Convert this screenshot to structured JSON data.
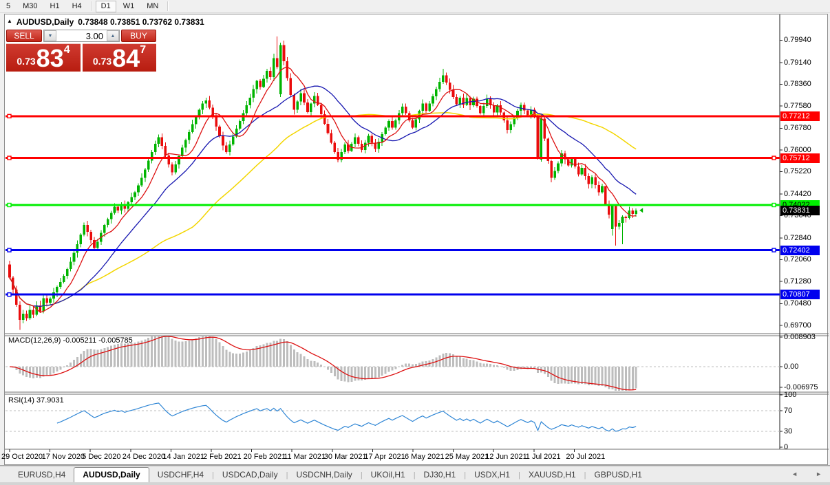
{
  "toolbar": {
    "timeframes": [
      "5",
      "M30",
      "H1",
      "H4",
      "D1",
      "W1",
      "MN"
    ],
    "active": "D1",
    "separators_before": [
      "D1"
    ]
  },
  "window": {
    "title_symbol": "AUDUSD,Daily",
    "title_ohlc": "0.73848 0.73851 0.73762 0.73831"
  },
  "trade_panel": {
    "sell_label": "SELL",
    "buy_label": "BUY",
    "volume": "3.00",
    "sell_price": {
      "prefix": "0.73",
      "big": "83",
      "sup": "4"
    },
    "buy_price": {
      "prefix": "0.73",
      "big": "84",
      "sup": "7"
    }
  },
  "macd_panel": {
    "label": "MACD(12,26,9) -0.005211 -0.005785"
  },
  "rsi_panel": {
    "label": "RSI(14) 37.9031"
  },
  "tabs": {
    "items": [
      "EURUSD,H4",
      "AUDUSD,Daily",
      "USDCHF,H4",
      "USDCAD,Daily",
      "USDCNH,Daily",
      "UKOil,H1",
      "DJ30,H1",
      "USDX,H1",
      "XAUUSD,H1",
      "GBPUSD,H1"
    ],
    "active": "AUDUSD,Daily",
    "left_arrow": "◄",
    "right_arrow": "►"
  },
  "chart_data": {
    "type": "candlestick",
    "symbol": "AUDUSD",
    "timeframe": "Daily",
    "colors": {
      "up": "#00b400",
      "down": "#ea0c0c",
      "macd_bar": "#bdbdbd",
      "macd_signal": "#dd1111",
      "rsi_line": "#2f86d5",
      "level_dash": "#bcbcbc"
    },
    "closes": [
      0.7142,
      0.7098,
      0.7044,
      0.699,
      0.7012,
      0.6996,
      0.7026,
      0.7008,
      0.7042,
      0.702,
      0.7068,
      0.7052,
      0.7066,
      0.7088,
      0.7108,
      0.7126,
      0.7148,
      0.7172,
      0.7198,
      0.723,
      0.7262,
      0.7296,
      0.733,
      0.7306,
      0.7276,
      0.7248,
      0.727,
      0.7302,
      0.733,
      0.7352,
      0.7374,
      0.7396,
      0.7382,
      0.7404,
      0.7388,
      0.7412,
      0.743,
      0.7448,
      0.7472,
      0.75,
      0.753,
      0.7562,
      0.7592,
      0.7622,
      0.7645,
      0.7615,
      0.758,
      0.7548,
      0.752,
      0.7548,
      0.7578,
      0.7608,
      0.7636,
      0.7664,
      0.7692,
      0.7718,
      0.7744,
      0.7766,
      0.7778,
      0.7752,
      0.7718,
      0.7684,
      0.765,
      0.7616,
      0.7592,
      0.762,
      0.7648,
      0.7676,
      0.7704,
      0.7732,
      0.776,
      0.7788,
      0.7818,
      0.7848,
      0.7826,
      0.7856,
      0.7884,
      0.7862,
      0.793,
      0.7898,
      0.7976,
      0.7918,
      0.7858,
      0.7798,
      0.7744,
      0.7774,
      0.7804,
      0.777,
      0.7736,
      0.7766,
      0.7794,
      0.7762,
      0.7728,
      0.7694,
      0.766,
      0.7626,
      0.7592,
      0.7564,
      0.7592,
      0.762,
      0.7596,
      0.7622,
      0.7646,
      0.7622,
      0.76,
      0.7626,
      0.765,
      0.7626,
      0.7604,
      0.763,
      0.7656,
      0.768,
      0.7704,
      0.768,
      0.7706,
      0.7732,
      0.7756,
      0.7732,
      0.7706,
      0.768,
      0.771,
      0.774,
      0.7766,
      0.774,
      0.7766,
      0.7792,
      0.7818,
      0.7844,
      0.7868,
      0.7842,
      0.7816,
      0.779,
      0.7764,
      0.7788,
      0.7762,
      0.7786,
      0.776,
      0.7784,
      0.7758,
      0.7732,
      0.7758,
      0.7784,
      0.776,
      0.7734,
      0.776,
      0.7734,
      0.7706,
      0.7672,
      0.7692,
      0.7716,
      0.774,
      0.7762,
      0.7742,
      0.7722,
      0.7744,
      0.7722,
      0.757,
      0.7712,
      0.764,
      0.756,
      0.75,
      0.7524,
      0.7552,
      0.7588,
      0.7566,
      0.7544,
      0.757,
      0.754,
      0.7512,
      0.7536,
      0.7506,
      0.7478,
      0.7502,
      0.7474,
      0.7448,
      0.747,
      0.7402,
      0.7368,
      0.7398,
      0.7325,
      0.7338,
      0.736,
      0.7355,
      0.7383,
      0.737,
      0.7383
    ],
    "first_open": 0.7188,
    "overrides": {
      "3": {
        "l": 0.6954
      },
      "79": {
        "o": 0.793,
        "h": 0.8007,
        "l": 0.789
      },
      "80": {
        "o": 0.78,
        "h": 0.7985,
        "l": 0.779
      },
      "128": {
        "h": 0.7891
      },
      "156": {
        "h": 0.7728
      },
      "157": {
        "o": 0.7565,
        "l": 0.7558
      },
      "176": {
        "h": 0.7448
      },
      "178": {
        "o": 0.7316,
        "l": 0.7292
      },
      "179": {
        "h": 0.7372,
        "l": 0.7256
      },
      "181": {
        "l": 0.7262
      },
      "185": {
        "h": 0.739,
        "l": 0.736
      }
    },
    "moving_averages": [
      {
        "period": 55,
        "color": "#f3d600",
        "width": 1.5
      },
      {
        "period": 21,
        "color": "#1717b0",
        "width": 1.3
      },
      {
        "period": 8,
        "color": "#dd1111",
        "width": 1.3
      }
    ],
    "hlines": [
      {
        "price": 0.77212,
        "color": "#ff0000",
        "label": "0.77212",
        "text": "#ffffff",
        "handles": "left"
      },
      {
        "price": 0.75712,
        "color": "#ff0000",
        "label": "0.75712",
        "text": "#ffffff",
        "handles": "both"
      },
      {
        "price": 0.74022,
        "color": "#00ee00",
        "label": "0.74022",
        "text": "#000000",
        "handles": "both"
      },
      {
        "price": 0.72402,
        "color": "#0000ee",
        "label": "0.72402",
        "text": "#ffffff",
        "handles": "both"
      },
      {
        "price": 0.70807,
        "color": "#0000ee",
        "label": "0.70807",
        "text": "#ffffff",
        "handles": "left"
      }
    ],
    "last_price_badge": {
      "price": 0.73831,
      "label": "0.73831",
      "bg": "#000000",
      "text": "#ffffff"
    },
    "price_axis_ticks": [
      "0.79940",
      "0.79140",
      "0.78360",
      "0.77580",
      "0.76780",
      "0.76000",
      "0.75220",
      "0.74420",
      "0.73640",
      "0.72840",
      "0.72060",
      "0.71280",
      "0.70480",
      "0.69700"
    ],
    "date_ticks": [
      "29 Oct 2020",
      "17 Nov 2020",
      "5 Dec 2020",
      "24 Dec 2020",
      "14 Jan 2021",
      "2 Feb 2021",
      "20 Feb 2021",
      "11 Mar 2021",
      "30 Mar 2021",
      "17 Apr 2021",
      "6 May 2021",
      "25 May 2021",
      "12 Jun 2021",
      "1 Jul 2021",
      "20 Jul 2021"
    ],
    "macd": {
      "fast": 12,
      "slow": 26,
      "signal": 9,
      "axis": [
        {
          "v": 0.008903,
          "label": "0.008903"
        },
        {
          "v": 0.0,
          "label": "0.00"
        },
        {
          "v": -0.006975,
          "label": "-0.006975"
        }
      ]
    },
    "rsi": {
      "period": 14,
      "axis": [
        {
          "v": 100,
          "label": "100"
        },
        {
          "v": 70,
          "label": "70"
        },
        {
          "v": 30,
          "label": "30"
        },
        {
          "v": 0,
          "label": "0"
        }
      ],
      "levels": [
        70,
        30
      ]
    }
  }
}
